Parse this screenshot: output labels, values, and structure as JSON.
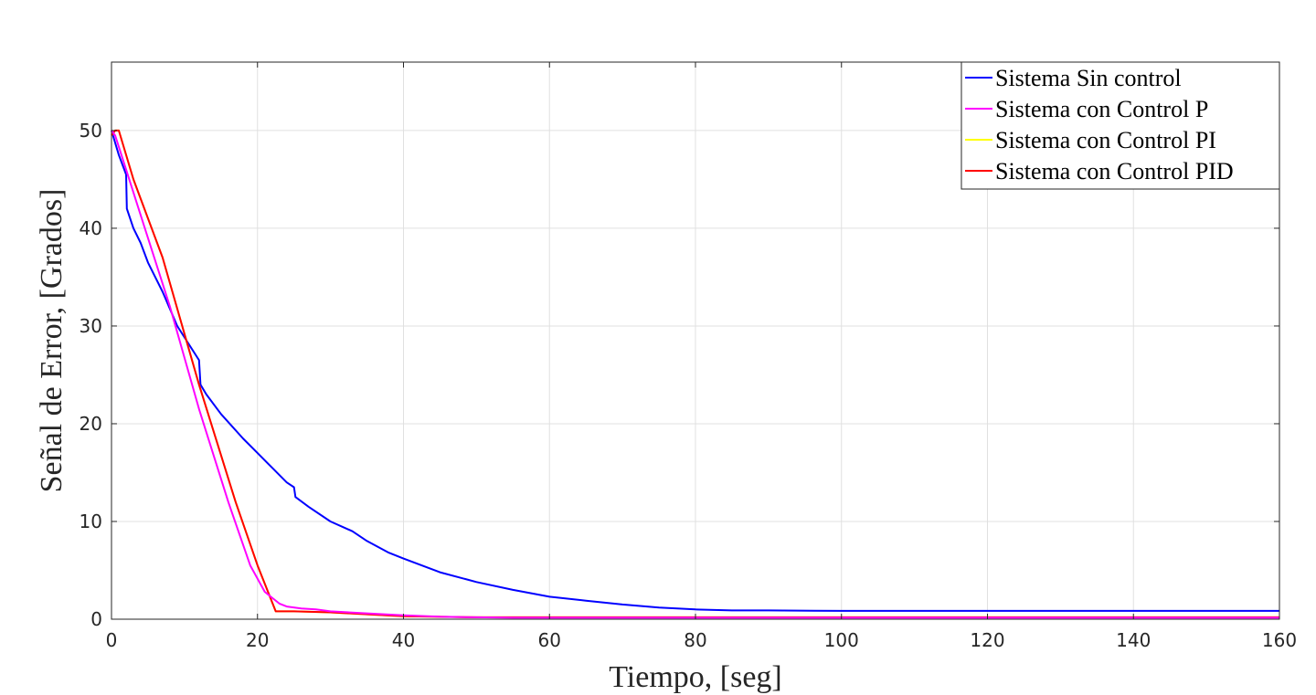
{
  "chart_data": {
    "type": "line",
    "xlabel": "Tiempo, [seg]",
    "ylabel": "Señal de Error, [Grados]",
    "xlim": [
      0,
      160
    ],
    "ylim": [
      0,
      57
    ],
    "xticks": [
      0,
      20,
      40,
      60,
      80,
      100,
      120,
      140,
      160
    ],
    "yticks": [
      0,
      10,
      20,
      30,
      40,
      50
    ],
    "grid": true,
    "legend_position": "top-right",
    "series": [
      {
        "name": "Sistema Sin control",
        "color": "#0000ff",
        "x": [
          0,
          1,
          2,
          2.1,
          3,
          4,
          5,
          7,
          9,
          12,
          12.2,
          13,
          15,
          18,
          20,
          22,
          24,
          25,
          25.2,
          27,
          30,
          33,
          35,
          38,
          40,
          45,
          50,
          55,
          60,
          65,
          70,
          75,
          80,
          85,
          90,
          100,
          110,
          120,
          130,
          140,
          150,
          160
        ],
        "y": [
          50,
          47.5,
          45.5,
          42,
          40,
          38.5,
          36.5,
          33.5,
          30,
          26.5,
          24,
          23,
          21,
          18.5,
          17,
          15.5,
          14,
          13.5,
          12.5,
          11.5,
          10,
          9,
          8,
          6.8,
          6.2,
          4.8,
          3.8,
          3.0,
          2.3,
          1.9,
          1.5,
          1.2,
          1.0,
          0.9,
          0.9,
          0.85,
          0.85,
          0.85,
          0.85,
          0.85,
          0.85,
          0.85
        ]
      },
      {
        "name": "Sistema con Control P",
        "color": "#ff00ff",
        "x": [
          0,
          0.5,
          2,
          5,
          8,
          12,
          16,
          19,
          21,
          22,
          23,
          24,
          26,
          28,
          30,
          35,
          40,
          45,
          50,
          55,
          60,
          70,
          80,
          100,
          120,
          140,
          160
        ],
        "y": [
          50,
          49.5,
          46,
          39,
          32,
          21.5,
          12,
          5.5,
          2.8,
          2.2,
          1.6,
          1.3,
          1.1,
          1.0,
          0.8,
          0.6,
          0.4,
          0.25,
          0.2,
          0.15,
          0.15,
          0.15,
          0.15,
          0.15,
          0.15,
          0.15,
          0.15
        ]
      },
      {
        "name": "Sistema con Control PI",
        "color": "#ffff00",
        "x": [
          0,
          0.5,
          1,
          3,
          7,
          12,
          17,
          20,
          22.5,
          25,
          30,
          35,
          40,
          50,
          60,
          80,
          100,
          120,
          140,
          160
        ],
        "y": [
          49.5,
          50,
          50,
          45,
          37,
          24,
          12,
          5.5,
          0.8,
          0.8,
          0.7,
          0.5,
          0.3,
          0.2,
          0.2,
          0.2,
          0.2,
          0.2,
          0.2,
          0.2
        ]
      },
      {
        "name": "Sistema con Control PID",
        "color": "#ff0000",
        "x": [
          0,
          0.5,
          1,
          3,
          7,
          12,
          17,
          20,
          22.5,
          25,
          30,
          35,
          40,
          50,
          60,
          80,
          100,
          120,
          140,
          160
        ],
        "y": [
          49.5,
          50,
          50,
          45,
          37,
          24,
          12,
          5.5,
          0.8,
          0.8,
          0.7,
          0.5,
          0.3,
          0.2,
          0.2,
          0.2,
          0.2,
          0.2,
          0.2,
          0.2
        ]
      }
    ]
  }
}
